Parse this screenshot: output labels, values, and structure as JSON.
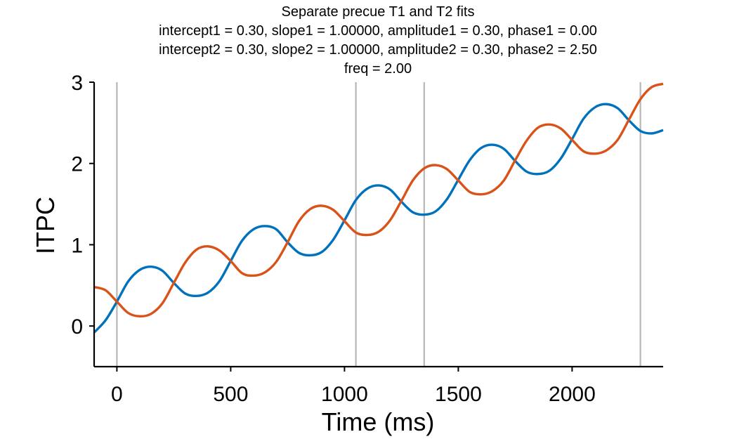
{
  "chart_data": {
    "type": "line",
    "title_lines": [
      "Separate precue T1 and T2 fits",
      "intercept1 = 0.30, slope1 = 1.00000, amplitude1 = 0.30, phase1 = 0.00",
      "intercept2 = 0.30, slope2 = 1.00000, amplitude2 = 0.30, phase2 = 2.50",
      "freq = 2.00"
    ],
    "xlabel": "Time (ms)",
    "ylabel": "ITPC",
    "xlim": [
      -100,
      2400
    ],
    "ylim": [
      -0.5,
      3.0
    ],
    "xticks": [
      0,
      500,
      1000,
      1500,
      2000
    ],
    "yticks": [
      0,
      1,
      2,
      3
    ],
    "vertical_lines": [
      0,
      1050,
      1350,
      2300
    ],
    "vertical_line_color": "#b7b7b7",
    "grid": false,
    "legend": "none",
    "series": [
      {
        "color": "#0072bd",
        "x": [
          -100,
          -50,
          0,
          50,
          100,
          150,
          200,
          250,
          300,
          350,
          400,
          450,
          500,
          550,
          600,
          650,
          700,
          750,
          800,
          850,
          900,
          950,
          1000,
          1050,
          1100,
          1150,
          1200,
          1250,
          1300,
          1350,
          1400,
          1450,
          1500,
          1550,
          1600,
          1650,
          1700,
          1750,
          1800,
          1850,
          1900,
          1950,
          2000,
          2050,
          2100,
          2150,
          2200,
          2250,
          2300,
          2350,
          2400
        ],
        "y": [
          -0.08,
          0.07,
          0.3,
          0.55,
          0.69,
          0.73,
          0.68,
          0.53,
          0.4,
          0.37,
          0.41,
          0.55,
          0.8,
          1.05,
          1.19,
          1.23,
          1.19,
          1.03,
          0.9,
          0.87,
          0.91,
          1.06,
          1.3,
          1.55,
          1.69,
          1.73,
          1.68,
          1.53,
          1.4,
          1.37,
          1.41,
          1.56,
          1.8,
          2.04,
          2.19,
          2.23,
          2.18,
          2.03,
          1.9,
          1.87,
          1.91,
          2.06,
          2.3,
          2.55,
          2.69,
          2.73,
          2.68,
          2.53,
          2.4,
          2.37,
          2.41
        ]
      },
      {
        "color": "#d95319",
        "x": [
          -100,
          -50,
          0,
          50,
          100,
          150,
          200,
          250,
          300,
          350,
          400,
          450,
          500,
          550,
          600,
          650,
          700,
          750,
          800,
          850,
          900,
          950,
          1000,
          1050,
          1100,
          1150,
          1200,
          1250,
          1300,
          1350,
          1400,
          1450,
          1500,
          1550,
          1600,
          1650,
          1700,
          1750,
          1800,
          1850,
          1900,
          1950,
          2000,
          2050,
          2100,
          2150,
          2200,
          2250,
          2300,
          2350,
          2400
        ],
        "y": [
          0.48,
          0.44,
          0.3,
          0.16,
          0.12,
          0.15,
          0.28,
          0.53,
          0.78,
          0.94,
          0.98,
          0.93,
          0.8,
          0.65,
          0.62,
          0.66,
          0.79,
          1.03,
          1.29,
          1.44,
          1.48,
          1.43,
          1.29,
          1.15,
          1.12,
          1.16,
          1.3,
          1.54,
          1.79,
          1.94,
          1.98,
          1.93,
          1.79,
          1.65,
          1.62,
          1.66,
          1.79,
          2.04,
          2.28,
          2.44,
          2.48,
          2.43,
          2.29,
          2.15,
          2.12,
          2.16,
          2.29,
          2.54,
          2.79,
          2.94,
          2.98
        ]
      }
    ]
  }
}
